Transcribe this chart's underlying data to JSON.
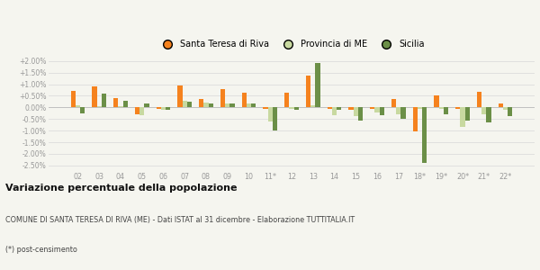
{
  "years": [
    "02",
    "03",
    "04",
    "05",
    "06",
    "07",
    "08",
    "09",
    "10",
    "11*",
    "12",
    "13",
    "14",
    "15",
    "16",
    "17",
    "18*",
    "19*",
    "20*",
    "21*",
    "22*"
  ],
  "santa_teresa": [
    0.7,
    0.9,
    0.4,
    -0.3,
    -0.05,
    0.95,
    0.35,
    0.8,
    0.62,
    -0.05,
    0.65,
    1.38,
    -0.05,
    -0.1,
    -0.05,
    0.35,
    -1.02,
    0.5,
    -0.05,
    0.68,
    0.15
  ],
  "provincia_me": [
    0.1,
    0.05,
    0.05,
    -0.35,
    -0.1,
    0.27,
    0.2,
    0.18,
    0.15,
    -0.6,
    -0.07,
    0.1,
    -0.35,
    -0.38,
    -0.22,
    -0.28,
    -0.05,
    -0.05,
    -0.85,
    -0.28,
    -0.1
  ],
  "sicilia": [
    -0.25,
    0.6,
    0.28,
    0.18,
    -0.1,
    0.25,
    0.18,
    0.18,
    0.15,
    -1.0,
    -0.1,
    1.92,
    -0.1,
    -0.55,
    -0.35,
    -0.5,
    -2.4,
    -0.3,
    -0.55,
    -0.65,
    -0.38
  ],
  "color_santa": "#f5821e",
  "color_provincia": "#c8d9a0",
  "color_sicilia": "#6b8f47",
  "background": "#f5f5ef",
  "grid_color": "#dddddd",
  "tick_color": "#999999",
  "title_bold": "Variazione percentuale della popolazione",
  "subtitle": "COMUNE DI SANTA TERESA DI RIVA (ME) - Dati ISTAT al 31 dicembre - Elaborazione TUTTITALIA.IT",
  "footnote": "(*) post-censimento",
  "ylim": [
    -2.7,
    2.3
  ],
  "yticks": [
    -2.5,
    -2.0,
    -1.5,
    -1.0,
    -0.5,
    0.0,
    0.5,
    1.0,
    1.5,
    2.0
  ],
  "ytick_labels": [
    "-2.50%",
    "-2.00%",
    "-1.50%",
    "-1.00%",
    "-0.50%",
    "0.00%",
    "+0.50%",
    "+1.00%",
    "+1.50%",
    "+2.00%"
  ]
}
